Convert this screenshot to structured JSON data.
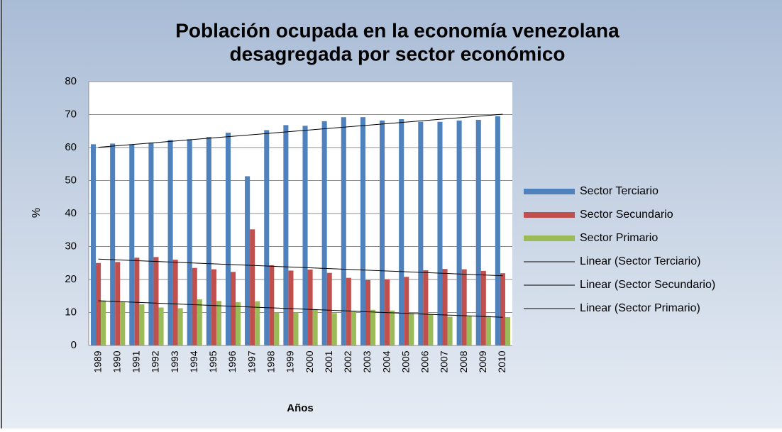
{
  "chart_data": {
    "type": "bar",
    "title": "Población ocupada en la economía venezolana",
    "subtitle": "desagregada por sector económico",
    "x_label": "Años",
    "y_label": "%",
    "categories": [
      "1989",
      "1990",
      "1991",
      "1992",
      "1993",
      "1994",
      "1995",
      "1996",
      "1997",
      "1998",
      "1999",
      "2000",
      "2001",
      "2002",
      "2003",
      "2004",
      "2005",
      "2006",
      "2007",
      "2008",
      "2009",
      "2010"
    ],
    "series": [
      {
        "name": "Sector Terciario",
        "color": "#4f81bd",
        "values": [
          61,
          61.2,
          61,
          61.5,
          62.3,
          62.5,
          63.2,
          64.5,
          51.3,
          65.3,
          66.8,
          66.6,
          68,
          69.2,
          69.2,
          68.2,
          68.6,
          67.8,
          67.8,
          68.2,
          68.4,
          69.5
        ]
      },
      {
        "name": "Sector Secundario",
        "color": "#c0504d",
        "values": [
          25,
          25.3,
          26.6,
          26.8,
          26,
          23.5,
          23.1,
          22.3,
          35.2,
          24.3,
          22.7,
          23,
          22,
          20.5,
          19.8,
          20,
          20.8,
          22.8,
          23.2,
          23.1,
          22.6,
          21.9
        ]
      },
      {
        "name": "Sector Primario",
        "color": "#9bbb59",
        "values": [
          13.6,
          13.3,
          12.5,
          11.5,
          11.3,
          14,
          13.5,
          13.1,
          13.4,
          10,
          10,
          11,
          9.8,
          10.3,
          10.8,
          10.6,
          9.8,
          9.4,
          8.7,
          8.8,
          8.9,
          8.6
        ]
      }
    ],
    "trendlines": [
      {
        "name": "Linear (Sector Terciario)",
        "color": "#000000"
      },
      {
        "name": "Linear (Sector Secundario)",
        "color": "#000000"
      },
      {
        "name": "Linear (Sector Primario)",
        "color": "#000000"
      }
    ],
    "ylim": [
      0,
      80
    ],
    "yticks": [
      0,
      10,
      20,
      30,
      40,
      50,
      60,
      70,
      80
    ],
    "grid": true,
    "legend": "right"
  }
}
